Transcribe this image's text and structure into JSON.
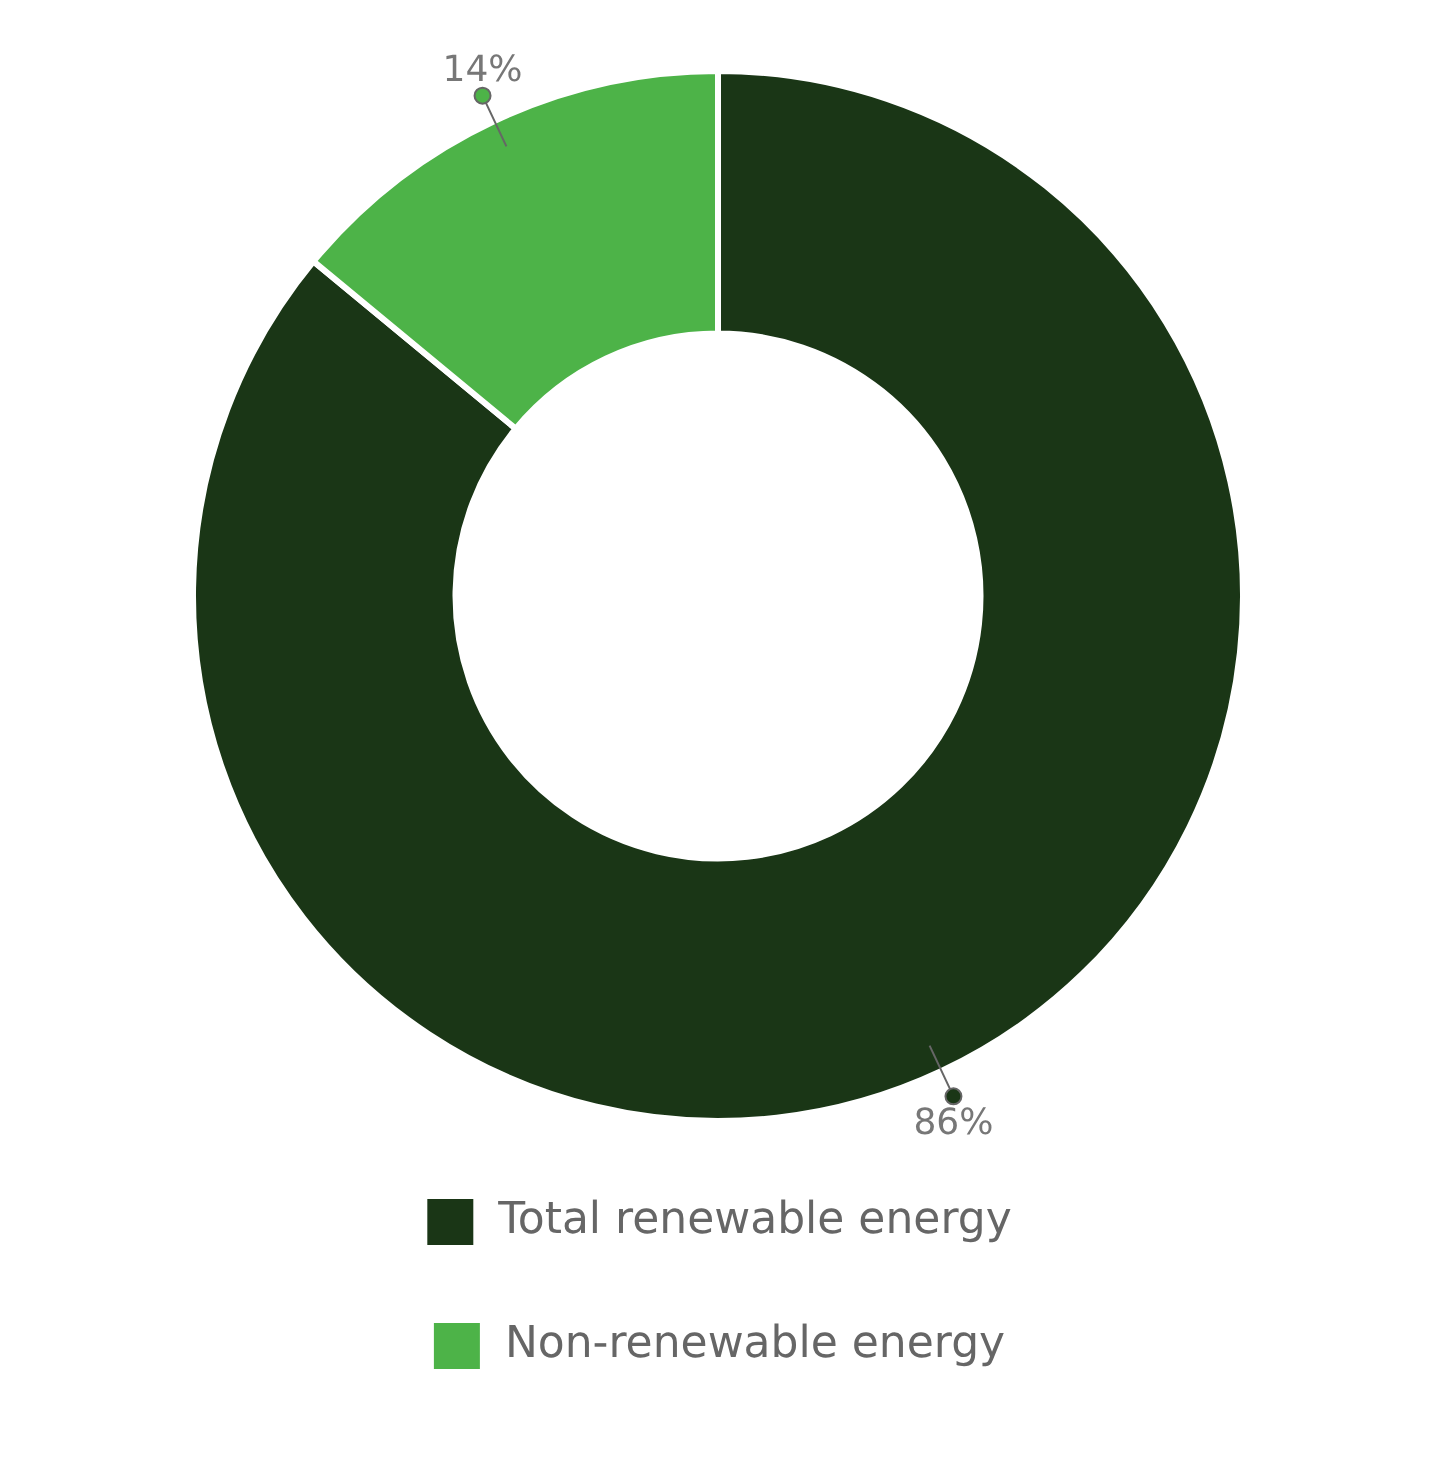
{
  "chart_data": {
    "type": "donut",
    "categories": [
      "Total renewable energy",
      "Non-renewable energy"
    ],
    "values": [
      86,
      14
    ],
    "colors": [
      "#1a3616",
      "#4db348"
    ],
    "value_labels": [
      "86%",
      "14%"
    ],
    "legend": "bottom"
  }
}
